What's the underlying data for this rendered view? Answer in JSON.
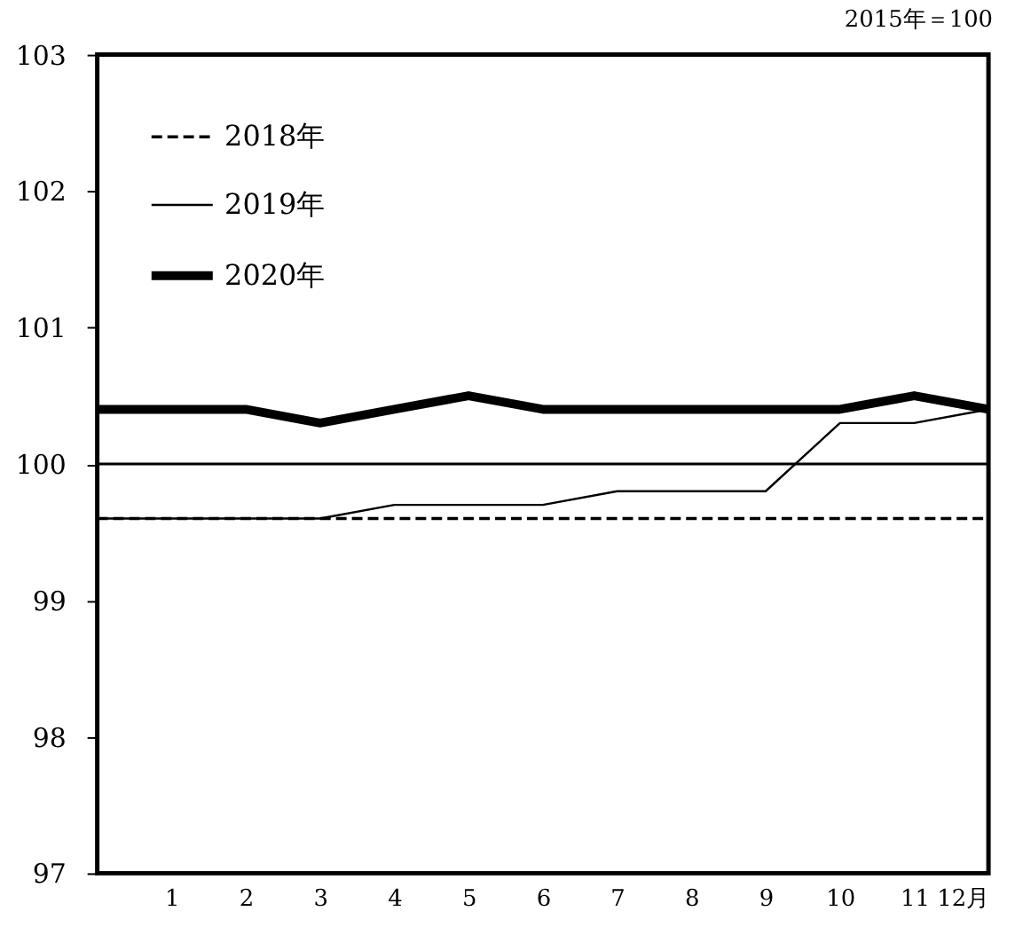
{
  "chart_data": {
    "type": "line",
    "x": [
      0,
      1,
      2,
      3,
      4,
      5,
      6,
      7,
      8,
      9,
      10,
      11,
      12
    ],
    "xlim": [
      0,
      12
    ],
    "xticks": [
      1,
      2,
      3,
      4,
      5,
      6,
      7,
      8,
      9,
      10,
      11,
      {
        "value": 12,
        "label": "12月"
      }
    ],
    "ylim": [
      97,
      103
    ],
    "yticks": [
      97,
      98,
      99,
      100,
      101,
      102,
      103
    ],
    "series": [
      {
        "name": "2018年",
        "color": "#000000",
        "line_style": "dashed",
        "values": [
          99.6,
          99.6,
          99.6,
          99.6,
          99.6,
          99.6,
          99.6,
          99.6,
          99.6,
          99.6,
          99.6,
          99.6,
          99.6
        ]
      },
      {
        "name": "2019年",
        "color": "#000000",
        "line_style": "solid",
        "values": [
          99.6,
          99.6,
          99.6,
          99.6,
          99.7,
          99.7,
          99.7,
          99.8,
          99.8,
          99.8,
          100.3,
          100.3,
          100.4
        ]
      },
      {
        "name": "2020年",
        "color": "#000000",
        "line_style": "solid",
        "values": [
          100.4,
          100.4,
          100.4,
          100.3,
          100.4,
          100.5,
          100.4,
          100.4,
          100.4,
          100.4,
          100.4,
          100.5,
          100.4
        ]
      }
    ],
    "ref_lines": [
      {
        "axis": "y",
        "value": 100,
        "color": "#000000",
        "line_style": "solid"
      }
    ],
    "annotations": [
      "2015年＝100"
    ],
    "legend": "top left",
    "grid": false,
    "marker": "none"
  }
}
